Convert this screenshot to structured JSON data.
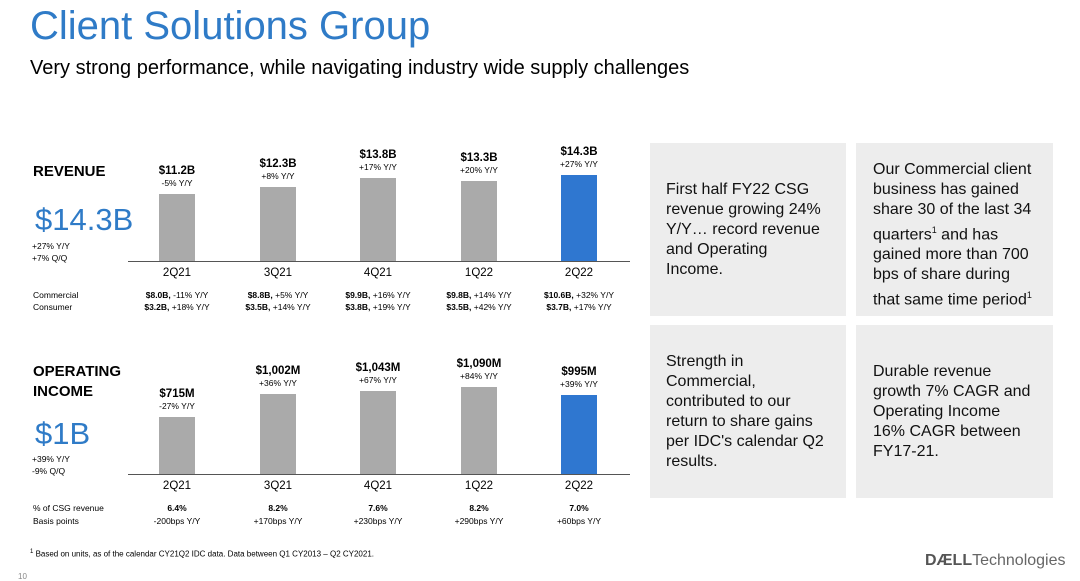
{
  "page": {
    "title": "Client Solutions Group",
    "subtitle": "Very strong performance, while navigating industry wide supply challenges"
  },
  "chart_data": [
    {
      "type": "bar",
      "title": "REVENUE",
      "headline": "$14.3B",
      "headline_note_1": "+27% Y/Y",
      "headline_note_2": "+7% Q/Q",
      "categories": [
        "2Q21",
        "3Q21",
        "4Q21",
        "1Q22",
        "2Q22"
      ],
      "values": [
        11.2,
        12.3,
        13.8,
        13.3,
        14.3
      ],
      "value_labels": [
        "$11.2B",
        "$12.3B",
        "$13.8B",
        "$13.3B",
        "$14.3B"
      ],
      "change_labels": [
        "-5% Y/Y",
        "+8% Y/Y",
        "+17% Y/Y",
        "+20% Y/Y",
        "+27% Y/Y"
      ],
      "highlight_index": 4,
      "highlight_color": "#2f77d0",
      "bar_color": "#aaaaaa",
      "ylim": [
        0,
        14.3
      ],
      "table_row_labels": [
        "Commercial",
        "Consumer"
      ],
      "table_rows": [
        [
          [
            "$8.0B,",
            " -11% Y/Y"
          ],
          [
            "$8.8B,",
            " +5% Y/Y"
          ],
          [
            "$9.9B,",
            " +16% Y/Y"
          ],
          [
            "$9.8B,",
            " +14% Y/Y"
          ],
          [
            "$10.6B,",
            " +32% Y/Y"
          ]
        ],
        [
          [
            "$3.2B,",
            " +18% Y/Y"
          ],
          [
            "$3.5B,",
            " +14% Y/Y"
          ],
          [
            "$3.8B,",
            " +19% Y/Y"
          ],
          [
            "$3.5B,",
            " +42% Y/Y"
          ],
          [
            "$3.7B,",
            " +17% Y/Y"
          ]
        ]
      ]
    },
    {
      "type": "bar",
      "title": "OPERATING INCOME",
      "title_line_1": "OPERATING",
      "title_line_2": "INCOME",
      "headline": "$1B",
      "headline_note_1": "+39% Y/Y",
      "headline_note_2": "-9% Q/Q",
      "categories": [
        "2Q21",
        "3Q21",
        "4Q21",
        "1Q22",
        "2Q22"
      ],
      "values": [
        715,
        1002,
        1043,
        1090,
        995
      ],
      "value_labels": [
        "$715M",
        "$1,002M",
        "$1,043M",
        "$1,090M",
        "$995M"
      ],
      "change_labels": [
        "-27% Y/Y",
        "+36% Y/Y",
        "+67% Y/Y",
        "+84% Y/Y",
        "+39% Y/Y"
      ],
      "highlight_index": 4,
      "highlight_color": "#2f77d0",
      "bar_color": "#aaaaaa",
      "ylim": [
        0,
        1090
      ],
      "table_row_labels": [
        "% of CSG revenue",
        "Basis points"
      ],
      "table_rows": [
        [
          [
            "6.4%",
            ""
          ],
          [
            "8.2%",
            ""
          ],
          [
            "7.6%",
            ""
          ],
          [
            "8.2%",
            ""
          ],
          [
            "7.0%",
            ""
          ]
        ],
        [
          [
            "",
            "-200bps Y/Y"
          ],
          [
            "",
            "+170bps Y/Y"
          ],
          [
            "",
            "+230bps Y/Y"
          ],
          [
            "",
            "+290bps Y/Y"
          ],
          [
            "",
            "+60bps Y/Y"
          ]
        ]
      ]
    }
  ],
  "panels": {
    "p1_lines": [
      "First half FY22 CSG",
      "revenue growing 24%",
      "Y/Y… record revenue",
      "and Operating",
      "Income."
    ],
    "p2_lines": [
      "Our Commercial client",
      "business has gained",
      "share 30 of the last 34",
      "quarters",
      " and has",
      "gained more than 700",
      "bps of share during",
      "that same time period"
    ],
    "p2_sup": "1",
    "p3_lines": [
      "Strength in",
      "Commercial,",
      "contributed to our",
      "return to share gains",
      "per IDC's calendar Q2",
      "results."
    ],
    "p4_lines": [
      "Durable revenue",
      "growth 7% CAGR and",
      "Operating Income",
      "16% CAGR between",
      "FY17-21."
    ]
  },
  "footer": {
    "footnote_mark": "1",
    "footnote": " Based on units, as of the calendar CY21Q2 IDC data.  Data between Q1 CY2013 – Q2 CY2021.",
    "page_number": "10",
    "logo_brand": "DÆLL",
    "logo_suffix": "Technologies"
  }
}
